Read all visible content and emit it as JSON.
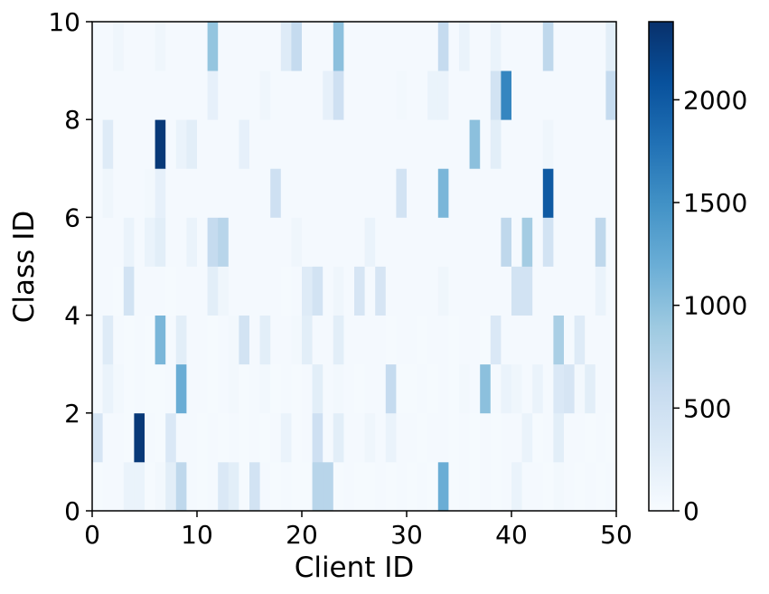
{
  "chart_data": {
    "type": "heatmap",
    "title": "",
    "xlabel": "Client ID",
    "ylabel": "Class ID",
    "xlim": [
      0,
      50
    ],
    "ylim": [
      0,
      10
    ],
    "x_ticks": [
      0,
      10,
      20,
      30,
      40,
      50
    ],
    "y_ticks": [
      0,
      2,
      4,
      6,
      8,
      10
    ],
    "colorbar": {
      "min": 0,
      "max": 2380,
      "ticks": [
        0,
        500,
        1000,
        1500,
        2000
      ],
      "colormap": "Blues"
    },
    "colors": {
      "low": "#f7fbff",
      "high": "#08306b"
    },
    "rows": 10,
    "cols": 50,
    "values": [
      [
        20,
        30,
        40,
        150,
        150,
        20,
        60,
        250,
        650,
        30,
        20,
        30,
        350,
        250,
        20,
        450,
        30,
        20,
        30,
        20,
        20,
        700,
        700,
        20,
        30,
        20,
        20,
        30,
        20,
        30,
        20,
        30,
        20,
        1200,
        20,
        30,
        20,
        30,
        20,
        30,
        150,
        30,
        30,
        20,
        60,
        30,
        20,
        30,
        20,
        30
      ],
      [
        400,
        30,
        40,
        20,
        2300,
        30,
        20,
        350,
        30,
        30,
        20,
        30,
        20,
        30,
        20,
        30,
        20,
        30,
        150,
        20,
        30,
        500,
        30,
        250,
        30,
        30,
        100,
        30,
        150,
        30,
        30,
        20,
        30,
        40,
        20,
        30,
        20,
        30,
        20,
        30,
        30,
        150,
        20,
        30,
        250,
        30,
        30,
        20,
        30,
        20
      ],
      [
        40,
        150,
        60,
        20,
        30,
        20,
        20,
        30,
        1200,
        30,
        30,
        20,
        30,
        60,
        20,
        30,
        60,
        20,
        30,
        20,
        30,
        250,
        30,
        60,
        30,
        20,
        30,
        30,
        600,
        20,
        20,
        30,
        20,
        40,
        20,
        60,
        30,
        1000,
        30,
        150,
        100,
        30,
        150,
        30,
        350,
        400,
        60,
        250,
        30,
        30
      ],
      [
        40,
        300,
        40,
        20,
        30,
        20,
        1100,
        30,
        250,
        30,
        30,
        20,
        30,
        60,
        450,
        30,
        250,
        30,
        30,
        60,
        250,
        30,
        30,
        250,
        30,
        30,
        40,
        30,
        20,
        30,
        30,
        20,
        30,
        40,
        20,
        30,
        30,
        20,
        350,
        30,
        30,
        30,
        30,
        30,
        800,
        30,
        300,
        30,
        30,
        30
      ],
      [
        30,
        30,
        20,
        450,
        30,
        40,
        30,
        20,
        30,
        30,
        30,
        250,
        100,
        30,
        30,
        30,
        30,
        30,
        20,
        30,
        300,
        450,
        30,
        100,
        30,
        400,
        30,
        400,
        30,
        30,
        30,
        30,
        30,
        100,
        30,
        30,
        30,
        30,
        30,
        30,
        450,
        450,
        30,
        30,
        30,
        30,
        30,
        30,
        150,
        30
      ],
      [
        30,
        30,
        30,
        150,
        30,
        150,
        250,
        30,
        30,
        150,
        30,
        600,
        700,
        30,
        30,
        30,
        30,
        30,
        30,
        100,
        30,
        30,
        30,
        30,
        30,
        30,
        150,
        30,
        30,
        30,
        30,
        30,
        30,
        40,
        30,
        30,
        30,
        30,
        30,
        650,
        30,
        850,
        30,
        450,
        30,
        30,
        30,
        30,
        650,
        30
      ],
      [
        30,
        100,
        30,
        30,
        30,
        60,
        200,
        30,
        30,
        30,
        30,
        30,
        30,
        30,
        30,
        30,
        30,
        500,
        30,
        30,
        30,
        30,
        30,
        30,
        30,
        30,
        30,
        30,
        30,
        450,
        30,
        30,
        30,
        1100,
        30,
        30,
        30,
        30,
        30,
        30,
        30,
        30,
        30,
        2000,
        30,
        30,
        30,
        30,
        30,
        30
      ],
      [
        30,
        300,
        30,
        30,
        30,
        30,
        2300,
        30,
        150,
        250,
        30,
        30,
        30,
        30,
        200,
        30,
        30,
        30,
        30,
        30,
        30,
        30,
        30,
        30,
        30,
        30,
        30,
        30,
        30,
        30,
        30,
        30,
        30,
        40,
        30,
        30,
        1000,
        30,
        250,
        30,
        30,
        30,
        30,
        100,
        30,
        30,
        30,
        30,
        30,
        30
      ],
      [
        30,
        30,
        30,
        30,
        30,
        30,
        30,
        30,
        30,
        30,
        30,
        200,
        30,
        30,
        30,
        30,
        100,
        30,
        30,
        30,
        30,
        30,
        200,
        500,
        30,
        30,
        30,
        30,
        30,
        60,
        30,
        30,
        150,
        150,
        30,
        30,
        30,
        30,
        450,
        1600,
        30,
        30,
        30,
        30,
        30,
        30,
        30,
        30,
        30,
        600
      ],
      [
        30,
        30,
        100,
        30,
        30,
        30,
        100,
        30,
        30,
        30,
        30,
        950,
        30,
        30,
        30,
        30,
        30,
        30,
        300,
        600,
        30,
        30,
        30,
        1000,
        30,
        30,
        30,
        30,
        30,
        30,
        30,
        30,
        30,
        600,
        30,
        150,
        30,
        30,
        150,
        30,
        30,
        30,
        30,
        650,
        30,
        30,
        30,
        30,
        30,
        250
      ]
    ]
  }
}
